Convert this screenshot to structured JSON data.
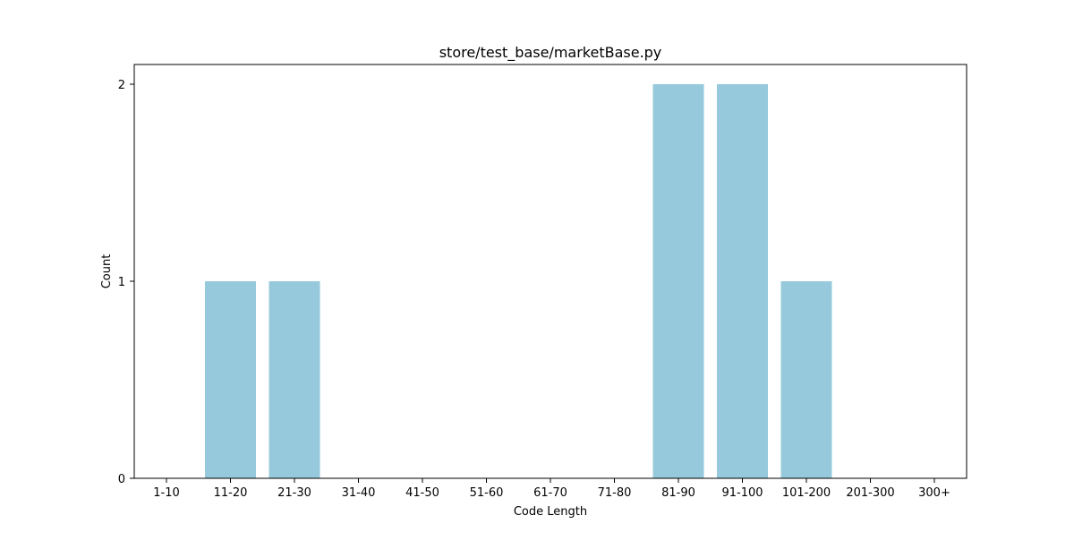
{
  "chart_data": {
    "type": "bar",
    "title": "store/test_base/marketBase.py",
    "xlabel": "Code Length",
    "ylabel": "Count",
    "categories": [
      "1-10",
      "11-20",
      "21-30",
      "31-40",
      "41-50",
      "51-60",
      "61-70",
      "71-80",
      "81-90",
      "91-100",
      "101-200",
      "201-300",
      "300+"
    ],
    "values": [
      0,
      1,
      1,
      0,
      0,
      0,
      0,
      0,
      2,
      2,
      1,
      0,
      0
    ],
    "ylim": [
      0,
      2.1
    ],
    "yticks": [
      "0",
      "1",
      "2"
    ],
    "grid": false,
    "legend": false,
    "bar_color": "#96c9dc"
  }
}
